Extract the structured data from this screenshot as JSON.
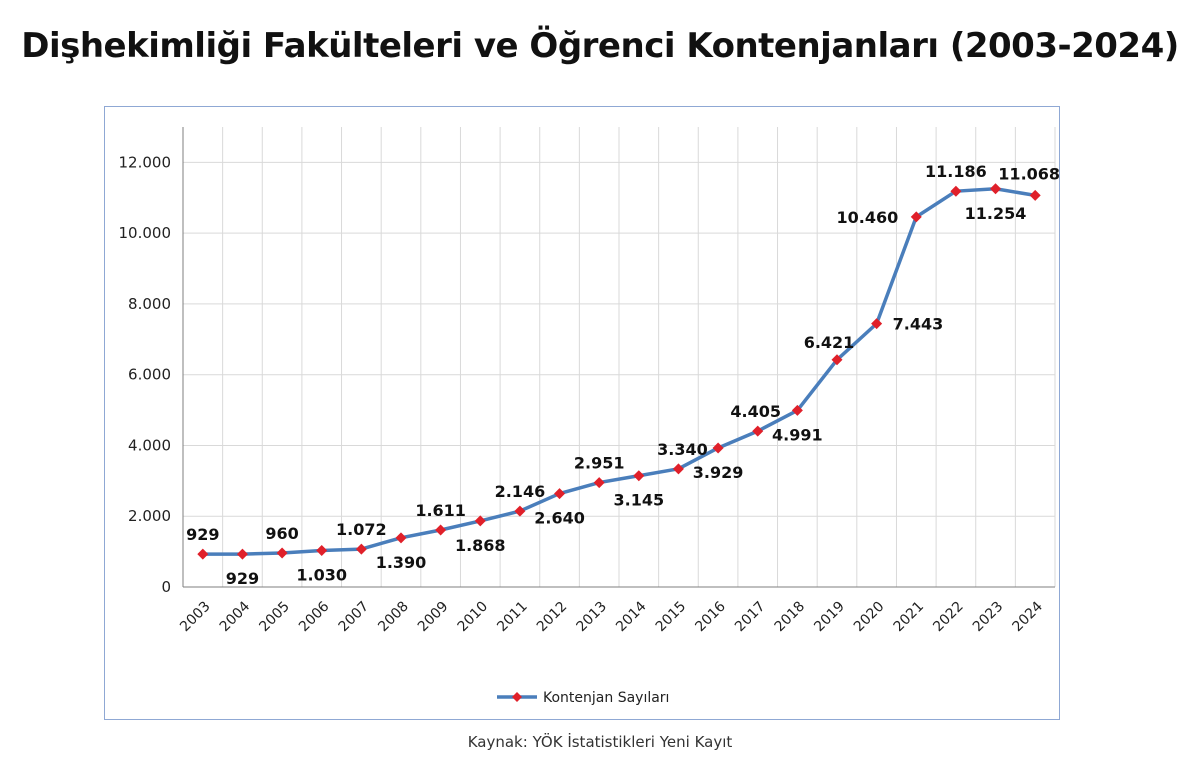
{
  "title": "Dişhekimliği Fakülteleri ve Öğrenci Kontenjanları (2003-2024)",
  "source_note": "Kaynak: YÖK İstatistikleri Yeni Kayıt",
  "colors": {
    "line": "#4a7ebb",
    "marker": "#e0202a",
    "grid": "#d9d9d9",
    "frame": "#8fa8d4"
  },
  "chart_data": {
    "type": "line",
    "title": "",
    "xlabel": "",
    "ylabel": "",
    "categories": [
      "2003",
      "2004",
      "2005",
      "2006",
      "2007",
      "2008",
      "2009",
      "2010",
      "2011",
      "2012",
      "2013",
      "2014",
      "2015",
      "2016",
      "2017",
      "2018",
      "2019",
      "2020",
      "2021",
      "2022",
      "2023",
      "2024"
    ],
    "series": [
      {
        "name": "Kontenjan Sayıları",
        "values": [
          929,
          929,
          960,
          1030,
          1072,
          1390,
          1611,
          1868,
          2146,
          2640,
          2951,
          3145,
          3340,
          3929,
          4405,
          4991,
          6421,
          7443,
          10460,
          11186,
          11254,
          11068
        ]
      }
    ],
    "data_labels": [
      "929",
      "929",
      "960",
      "1.030",
      "1.072",
      "1.390",
      "1.611",
      "1.868",
      "2.146",
      "2.640",
      "2.951",
      "3.145",
      "3.340",
      "3.929",
      "4.405",
      "4.991",
      "6.421",
      "7.443",
      "10.460",
      "11.186",
      "11.254",
      "11.068"
    ],
    "ylim": [
      0,
      13000
    ],
    "yticks": [
      0,
      2000,
      4000,
      6000,
      8000,
      10000,
      12000
    ],
    "ytick_labels": [
      "0",
      "2.000",
      "4.000",
      "6.000",
      "8.000",
      "10.000",
      "12.000"
    ],
    "grid": true,
    "legend": "bottom-center"
  }
}
